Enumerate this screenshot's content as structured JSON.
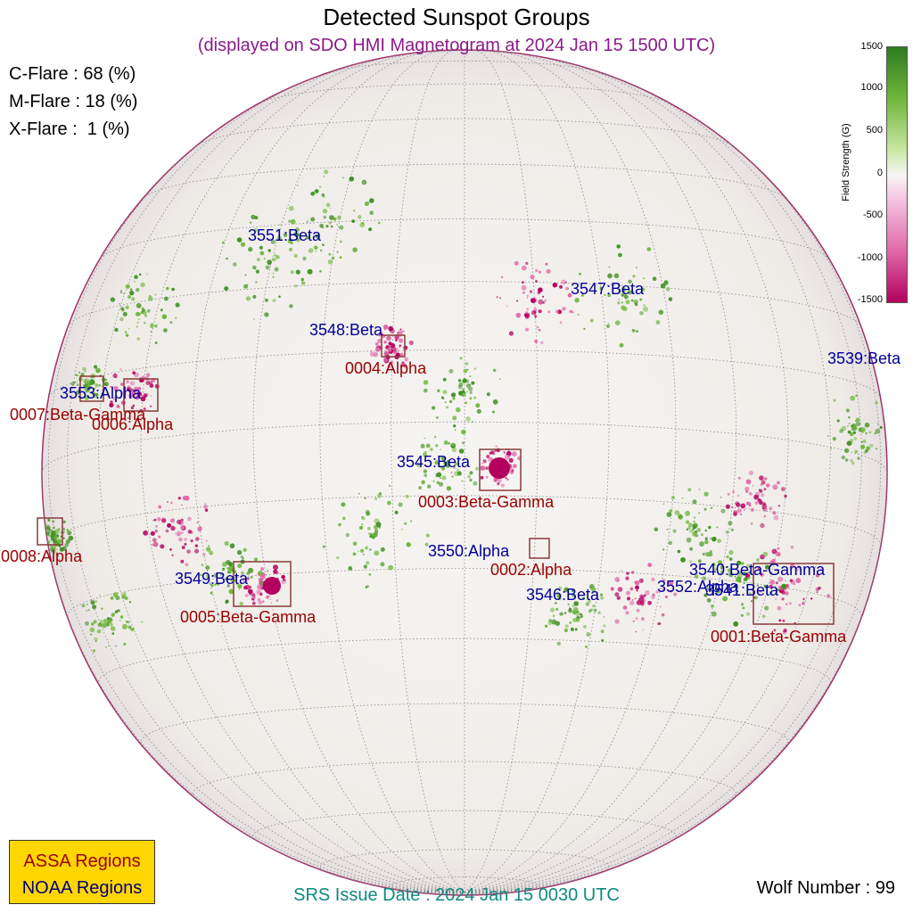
{
  "header": {
    "title": "Detected Sunspot Groups",
    "subtitle": "(displayed on SDO HMI Magnetogram at 2024 Jan 15 1500 UTC)"
  },
  "flares": {
    "c": "C-Flare : 68 (%)",
    "m": "M-Flare : 18 (%)",
    "x": "X-Flare :  1 (%)"
  },
  "colorbar": {
    "label": "Field Strength (G)",
    "ticks": [
      "1500",
      "1000",
      "500",
      "0",
      "-500",
      "-1000",
      "-1500"
    ],
    "colors": {
      "positive": "#2e7a1e",
      "negative": "#b3005e",
      "zero": "#f6f6f6"
    }
  },
  "regions": {
    "noaa": [
      {
        "name": "3551:Beta"
      },
      {
        "name": "3547:Beta"
      },
      {
        "name": "3548:Beta"
      },
      {
        "name": "3539:Beta"
      },
      {
        "name": "3553:Alpha"
      },
      {
        "name": "3545:Beta"
      },
      {
        "name": "3550:Alpha"
      },
      {
        "name": "3540:Beta-Gamma"
      },
      {
        "name": "3549:Beta"
      },
      {
        "name": "3546:Beta"
      },
      {
        "name": "3552:Alpha"
      },
      {
        "name": "3541:Beta"
      }
    ],
    "assa": [
      {
        "name": "0004:Alpha"
      },
      {
        "name": "0007:Beta-Gamma"
      },
      {
        "name": "0006:Alpha"
      },
      {
        "name": "0003:Beta-Gamma"
      },
      {
        "name": "0008:Alpha"
      },
      {
        "name": "0002:Alpha"
      },
      {
        "name": "0005:Beta-Gamma"
      },
      {
        "name": "0001:Beta-Gamma"
      }
    ]
  },
  "legend": {
    "assa_label": "ASSA Regions",
    "noaa_label": "NOAA Regions",
    "assa_color": "#a00000",
    "noaa_color": "#000080",
    "bg_color": "#ffd600"
  },
  "footer": {
    "srs": "SRS Issue Date : 2024 Jan 15 0030 UTC",
    "wolf": "Wolf Number : 99"
  }
}
